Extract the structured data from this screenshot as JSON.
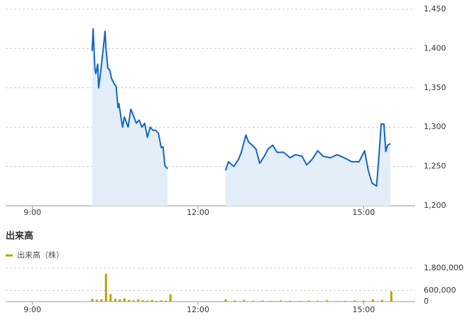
{
  "chart_data": [
    {
      "type": "line",
      "color": "#1565c0",
      "fill": "#e3eef9",
      "x": [
        605,
        606,
        608,
        609,
        611,
        612,
        614,
        617,
        619,
        620,
        622,
        624,
        626,
        629,
        631,
        633,
        634,
        636,
        638,
        640,
        644,
        647,
        650,
        653,
        656,
        659,
        662,
        665,
        668,
        671,
        674,
        677,
        680,
        682,
        684,
        687,
        720,
        750,
        753,
        759,
        764,
        767,
        772,
        775,
        779,
        783,
        787,
        792,
        796,
        801,
        806,
        813,
        820,
        826,
        833,
        838,
        844,
        850,
        856,
        864,
        871,
        879,
        887,
        895,
        901,
        905,
        909,
        914,
        916,
        919,
        922,
        924,
        926,
        929
      ],
      "values": [
        1397,
        1425,
        1373,
        1368,
        1380,
        1350,
        1368,
        1400,
        1422,
        1400,
        1375,
        1373,
        1362,
        1355,
        1352,
        1325,
        1330,
        1315,
        1300,
        1313,
        1300,
        1323,
        1314,
        1305,
        1309,
        1300,
        1305,
        1287,
        1300,
        1296,
        1296,
        1292,
        1274,
        1275,
        1251,
        1247,
        null,
        1245,
        1256,
        1250,
        1259,
        1268,
        1290,
        1281,
        1277,
        1272,
        1254,
        1263,
        1272,
        1277,
        1268,
        1268,
        1261,
        1265,
        1263,
        1252,
        1259,
        1270,
        1263,
        1261,
        1265,
        1261,
        1256,
        1256,
        1270,
        1245,
        1229,
        1225,
        1254,
        1304,
        1304,
        1269,
        1277,
        1279
      ],
      "xlim": [
        511,
        956
      ],
      "xticks": [
        {
          "value": 540,
          "label": "9:00"
        },
        {
          "value": 720,
          "label": "12:00"
        },
        {
          "value": 900,
          "label": "15:00"
        }
      ],
      "ylim": [
        1200,
        1450
      ],
      "yticks": [
        {
          "value": 1200,
          "label": "1,200"
        },
        {
          "value": 1250,
          "label": "1,250"
        },
        {
          "value": 1300,
          "label": "1,300"
        },
        {
          "value": 1350,
          "label": "1,350"
        },
        {
          "value": 1400,
          "label": "1,400"
        },
        {
          "value": 1450,
          "label": "1,450"
        }
      ],
      "grid": true
    },
    {
      "type": "bar",
      "title": "出来高",
      "x": [
        605,
        610,
        615,
        620,
        625,
        630,
        635,
        640,
        645,
        650,
        655,
        660,
        665,
        670,
        675,
        680,
        685,
        690,
        750,
        760,
        770,
        780,
        790,
        800,
        810,
        820,
        830,
        840,
        850,
        860,
        870,
        880,
        890,
        900,
        910,
        920,
        930
      ],
      "series": [
        {
          "name": "出来高（株）",
          "color": "#b5a300",
          "values": [
            150000,
            100000,
            120000,
            1500000,
            400000,
            150000,
            120000,
            180000,
            90000,
            60000,
            110000,
            70000,
            50000,
            80000,
            40000,
            60000,
            50000,
            400000,
            120000,
            60000,
            80000,
            40000,
            50000,
            30000,
            60000,
            40000,
            30000,
            50000,
            40000,
            70000,
            30000,
            40000,
            60000,
            50000,
            120000,
            90000,
            550000
          ]
        }
      ],
      "xlim": [
        511,
        956
      ],
      "xticks": [
        {
          "value": 540,
          "label": "9:00"
        },
        {
          "value": 720,
          "label": "12:00"
        },
        {
          "value": 900,
          "label": "15:00"
        }
      ],
      "ylim": [
        0,
        1800000
      ],
      "yticks": [
        0,
        {
          "value": 600000,
          "label": "600,000"
        },
        {
          "value": 1800000,
          "label": "1,800,000"
        }
      ],
      "grid": true
    }
  ]
}
